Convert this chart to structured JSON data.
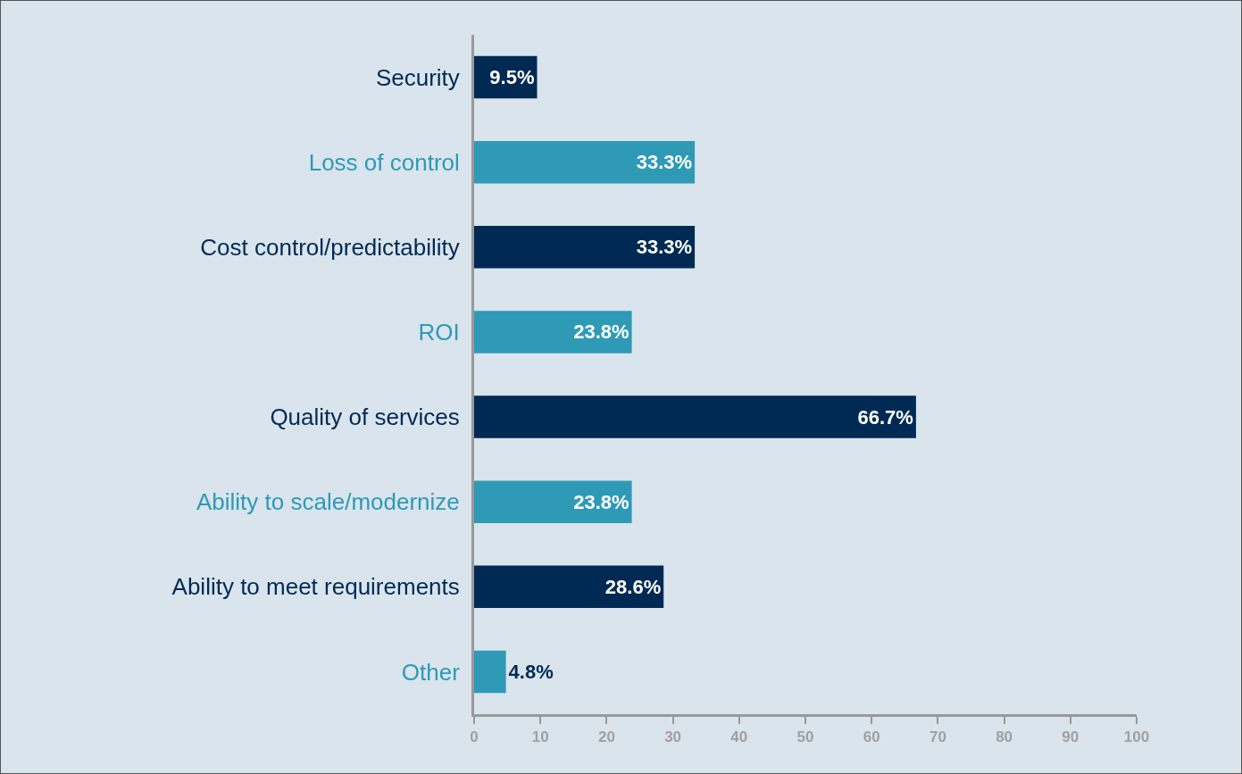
{
  "chart_data": {
    "type": "bar",
    "orientation": "horizontal",
    "categories": [
      "Security",
      "Loss of control",
      "Cost control/predictability",
      "ROI",
      "Quality of services",
      "Ability to scale/modernize",
      "Ability to meet requirements",
      "Other"
    ],
    "values": [
      9.5,
      33.3,
      33.3,
      23.8,
      66.7,
      23.8,
      28.6,
      4.8
    ],
    "value_labels": [
      "9.5%",
      "33.3%",
      "33.3%",
      "23.8%",
      "66.7%",
      "23.8%",
      "28.6%",
      "4.8%"
    ],
    "colors": [
      "#002a54",
      "#2e9ab6",
      "#002a54",
      "#2e9ab6",
      "#002a54",
      "#2e9ab6",
      "#002a54",
      "#2e9ab6"
    ],
    "xlim": [
      0,
      100
    ],
    "xticks": [
      0,
      10,
      20,
      30,
      40,
      50,
      60,
      70,
      80,
      90,
      100
    ],
    "grid": false,
    "legend": false
  }
}
